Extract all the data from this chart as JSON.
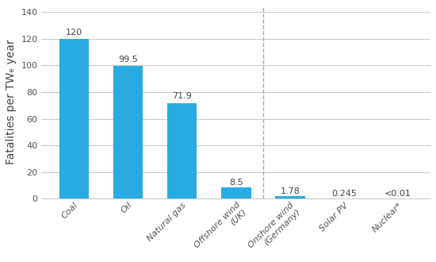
{
  "categories": [
    "Coal",
    "Oil",
    "Natural gas",
    "Offshore wind\n(UK)",
    "Onshore wind\n(Germany)",
    "Solar PV",
    "Nuclear*"
  ],
  "values": [
    120,
    99.5,
    71.9,
    8.5,
    1.78,
    0.245,
    0.005
  ],
  "labels": [
    "120",
    "99.5",
    "71.9",
    "8.5",
    "1.78",
    "0.245",
    "<0.01"
  ],
  "bar_color": "#29ABE2",
  "ylabel": "Fatalities per TWₑ year",
  "ylim": [
    0,
    145
  ],
  "yticks": [
    0,
    20,
    40,
    60,
    80,
    100,
    120,
    140
  ],
  "dashed_line_x": 3.5,
  "label_fontsize": 8,
  "tick_fontsize": 8,
  "ylabel_fontsize": 10,
  "bar_width": 0.55,
  "background_color": "#ffffff",
  "grid_color": "#cccccc"
}
